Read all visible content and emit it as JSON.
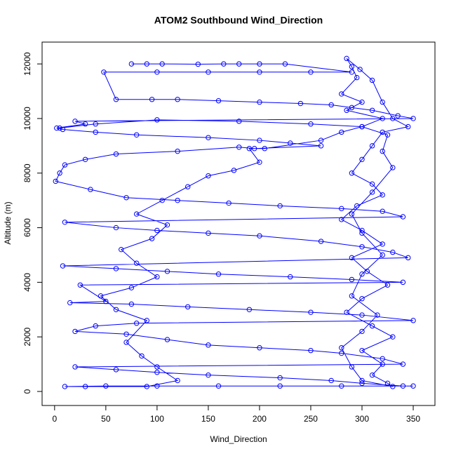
{
  "chart_data": {
    "type": "line",
    "marker": "circle-open",
    "color": "#0000ff",
    "title": "ATOM2 Southbound Wind_Direction",
    "x_label": "Wind_Direction",
    "y_label": "Altitude (m)",
    "xlim": [
      -12.2,
      371.2
    ],
    "ylim": [
      -514,
      12800
    ],
    "xticks": [
      0,
      50,
      100,
      150,
      200,
      250,
      300,
      350
    ],
    "yticks": [
      0,
      2000,
      4000,
      6000,
      8000,
      10000,
      12000
    ],
    "x": [
      75,
      90,
      105,
      140,
      165,
      180,
      200,
      225,
      290,
      250,
      200,
      150,
      100,
      48,
      60,
      95,
      120,
      160,
      200,
      240,
      270,
      290,
      310,
      335,
      350,
      20,
      30,
      2,
      8,
      40,
      80,
      150,
      200,
      230,
      260,
      195,
      180,
      120,
      60,
      30,
      10,
      5,
      1,
      35,
      70,
      120,
      170,
      220,
      280,
      320,
      340,
      10,
      60,
      100,
      150,
      200,
      260,
      300,
      330,
      345,
      8,
      60,
      110,
      160,
      230,
      290,
      340,
      25,
      50,
      15,
      75,
      130,
      190,
      250,
      300,
      350,
      80,
      40,
      20,
      70,
      110,
      150,
      200,
      250,
      280,
      320,
      340,
      20,
      60,
      100,
      150,
      220,
      270,
      300,
      340,
      350,
      280,
      220,
      160,
      100,
      50,
      10,
      30,
      90,
      120,
      100,
      85,
      70,
      90,
      60,
      45,
      75,
      100,
      80,
      65,
      95,
      110,
      80,
      105,
      130,
      150,
      175,
      200,
      190,
      205,
      260,
      280,
      300,
      320,
      285,
      300,
      280,
      295,
      290,
      285,
      298,
      310,
      320,
      330,
      345,
      320,
      310,
      300,
      290,
      310,
      320,
      295,
      280,
      300,
      320,
      290,
      305,
      325,
      300,
      285,
      310,
      330,
      300,
      320,
      310,
      325,
      330,
      300,
      290,
      280,
      300,
      315,
      290,
      300,
      320,
      300,
      290,
      310,
      330,
      320,
      325,
      300,
      250,
      180,
      100,
      40,
      5
    ],
    "values": [
      12000,
      12000,
      12000,
      11990,
      12000,
      12000,
      12000,
      12000,
      11700,
      11700,
      11700,
      11700,
      11700,
      11700,
      10700,
      10700,
      10700,
      10650,
      10600,
      10550,
      10500,
      10400,
      10300,
      10100,
      10000,
      9900,
      9800,
      9650,
      9600,
      9500,
      9400,
      9300,
      9200,
      9100,
      9000,
      8900,
      8950,
      8800,
      8700,
      8500,
      8300,
      8000,
      7700,
      7400,
      7100,
      7000,
      6900,
      6800,
      6700,
      6600,
      6400,
      6200,
      6000,
      5900,
      5800,
      5700,
      5500,
      5300,
      5100,
      4900,
      4600,
      4500,
      4400,
      4300,
      4200,
      4100,
      4000,
      3900,
      3300,
      3250,
      3200,
      3100,
      3000,
      2900,
      2800,
      2600,
      2500,
      2400,
      2200,
      2100,
      1900,
      1700,
      1600,
      1500,
      1400,
      1200,
      1000,
      900,
      800,
      700,
      600,
      500,
      400,
      300,
      200,
      200,
      200,
      200,
      200,
      200,
      200,
      180,
      180,
      180,
      400,
      900,
      1300,
      1800,
      2600,
      3000,
      3500,
      3800,
      4200,
      4700,
      5200,
      5600,
      6100,
      6500,
      7000,
      7500,
      7900,
      8100,
      8400,
      8900,
      8900,
      9200,
      9500,
      9700,
      10000,
      10300,
      10600,
      10900,
      11500,
      11900,
      12200,
      11800,
      11400,
      10600,
      10000,
      9700,
      9500,
      9000,
      8500,
      8000,
      7600,
      7200,
      6800,
      6300,
      5900,
      5400,
      4900,
      4400,
      3900,
      3400,
      2900,
      2400,
      2000,
      1500,
      1000,
      600,
      300,
      180,
      400,
      900,
      1600,
      2200,
      2800,
      3500,
      4300,
      5000,
      5800,
      6500,
      7300,
      8200,
      8800,
      9400,
      9700,
      9800,
      9900,
      9950,
      9800,
      9650
    ]
  }
}
